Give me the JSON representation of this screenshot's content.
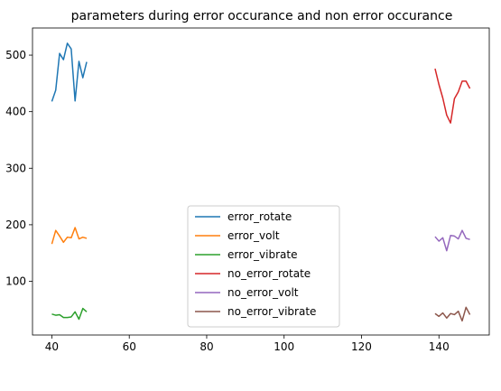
{
  "chart_data": {
    "type": "line",
    "title": "parameters during error occurance and non error occurance",
    "xlabel": "",
    "ylabel": "",
    "xlim": [
      35,
      153
    ],
    "ylim": [
      5,
      548
    ],
    "xticks": [
      40,
      60,
      80,
      100,
      120,
      140
    ],
    "yticks": [
      100,
      200,
      300,
      400,
      500
    ],
    "grid": false,
    "legend_position": "lower center",
    "series": [
      {
        "name": "error_rotate",
        "color": "#1f77b4",
        "x": [
          40,
          41,
          42,
          43,
          44,
          45,
          46,
          47,
          48,
          49
        ],
        "y": [
          418,
          438,
          503,
          492,
          521,
          511,
          419,
          489,
          460,
          488
        ]
      },
      {
        "name": "error_volt",
        "color": "#ff7f0e",
        "x": [
          40,
          41,
          42,
          43,
          44,
          45,
          46,
          47,
          48,
          49
        ],
        "y": [
          166,
          190,
          180,
          169,
          178,
          177,
          195,
          175,
          178,
          176
        ]
      },
      {
        "name": "error_vibrate",
        "color": "#2ca02c",
        "x": [
          40,
          41,
          42,
          43,
          44,
          45,
          46,
          47,
          48,
          49
        ],
        "y": [
          42,
          40,
          41,
          36,
          36,
          37,
          46,
          33,
          52,
          46
        ]
      },
      {
        "name": "no_error_rotate",
        "color": "#d62728",
        "x": [
          139,
          140,
          141,
          142,
          143,
          144,
          145,
          146,
          147,
          148
        ],
        "y": [
          476,
          448,
          424,
          394,
          380,
          423,
          435,
          454,
          454,
          441
        ]
      },
      {
        "name": "no_error_volt",
        "color": "#9467bd",
        "x": [
          139,
          140,
          141,
          142,
          143,
          144,
          145,
          146,
          147,
          148
        ],
        "y": [
          179,
          171,
          177,
          154,
          181,
          180,
          175,
          190,
          176,
          174
        ]
      },
      {
        "name": "no_error_vibrate",
        "color": "#8c564b",
        "x": [
          139,
          140,
          141,
          142,
          143,
          144,
          145,
          146,
          147,
          148
        ],
        "y": [
          43,
          38,
          44,
          35,
          43,
          41,
          47,
          30,
          54,
          41
        ]
      }
    ]
  }
}
